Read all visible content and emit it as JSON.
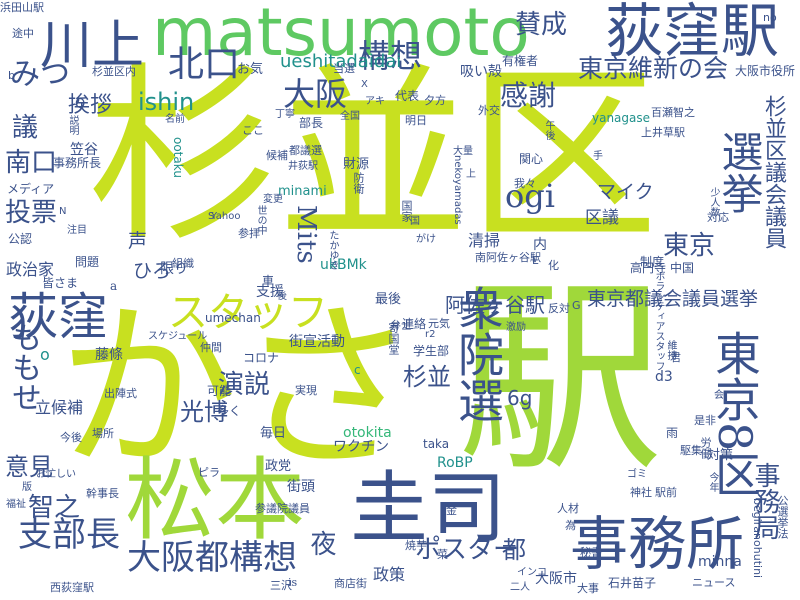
{
  "palette": {
    "lime": "#c8e020",
    "yellowgreen": "#a0d83a",
    "green": "#5ec962",
    "teal": "#21918c",
    "slate": "#3b528b",
    "navy": "#443a83",
    "seagreen": "#35b779"
  },
  "words": [
    "杉並区",
    "かさ",
    "駅",
    "松本",
    "圭司",
    "matsumoto",
    "荻窪駅",
    "事務所",
    "川上",
    "衆院選",
    "東京8区",
    "荻窪",
    "スタッフ",
    "選挙",
    "大阪都構想",
    "支部長",
    "北口",
    "構想",
    "賛成",
    "大阪",
    "東京維新の会",
    "感謝",
    "ogi",
    "みつ",
    "挨拶",
    "ishin",
    "議",
    "南口",
    "投票",
    "Mits",
    "東京",
    "杉並区議会議員",
    "ueshitadaidai",
    "阿佐ヶ谷駅",
    "東京都議会議員選挙",
    "杉並",
    "光博",
    "演説",
    "智之",
    "意見",
    "都",
    "ポスター",
    "夜",
    "事務局",
    "ももせ",
    "浜田山駅",
    "途中",
    "杉並区内",
    "お気",
    "当選",
    "吸い殻",
    "有権者",
    "大阪市役所",
    "ひろ",
    "声",
    "限り",
    "政治家",
    "皆さま",
    "問題",
    "笠谷",
    "事務所長",
    "メディア",
    "マイク",
    "区議",
    "清掃",
    "内",
    "高円寺",
    "中国",
    "ukBMk",
    "立候補",
    "支援",
    "藤條",
    "今後",
    "幹事長",
    "西荻窪駅",
    "商店街",
    "政策",
    "大阪市",
    "石井苗子",
    "ニュース",
    "minna",
    "begiranohutini",
    "公選挙法",
    "街頭",
    "ワクチン",
    "RoBP",
    "otokita",
    "taka",
    "d3",
    "yanagase",
    "上井草駅",
    "百瀬智之",
    "ボランティアスタッフ",
    "最後",
    "元気",
    "連絡",
    "学生部",
    "ピラ",
    "政党",
    "毎日",
    "多く",
    "可能",
    "実現",
    "出陣式",
    "場所",
    "コロナ",
    "仲間",
    "街宣活動",
    "スケジュール",
    "umechan",
    "参議院議員",
    "三沢",
    "二人",
    "大事",
    "秘書",
    "人材",
    "神社",
    "駅前",
    "制度",
    "対応",
    "少人数",
    "労働",
    "Yahoo",
    "参拝",
    "組織",
    "候補",
    "都議選",
    "井荻駅",
    "財源",
    "防衛",
    "関心",
    "我々",
    "国家",
    "ootaku",
    "minami",
    "ここ",
    "代表",
    "明日",
    "夕方",
    "外交",
    "午後",
    "部長",
    "丁寧",
    "全国",
    "アキ",
    "名前",
    "説明",
    "Q",
    "b",
    "no",
    "L",
    "手",
    "上",
    "大量",
    "変更",
    "世の中",
    "がけ",
    "国",
    "たかゆき",
    "nekoyamadas",
    "南阿佐ヶ谷駅",
    "E",
    "化",
    "反対",
    "G",
    "r2",
    "激励",
    "維持",
    "君",
    "会",
    "是非",
    "雨",
    "対策",
    "駆集",
    "ゴミ",
    "今年",
    "金",
    "焼芋",
    "菜",
    "インコ",
    "is",
    "c",
    "弁士",
    "後",
    "車",
    "a",
    "o",
    "6g",
    "X",
    "S",
    "N",
    "版",
    "福祉",
    "寄国堂",
    "お忙しい",
    "公認",
    "注目",
    "為"
  ]
}
